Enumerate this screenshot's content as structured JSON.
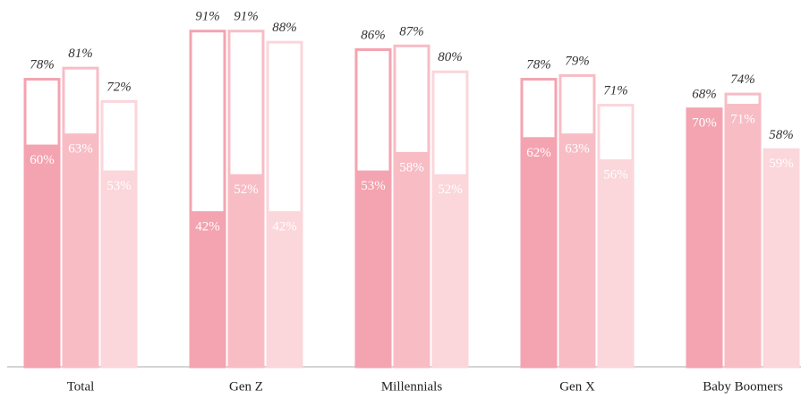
{
  "chart_data": {
    "type": "bar",
    "categories": [
      "Total",
      "Gen Z",
      "Millennials",
      "Gen X",
      "Baby Boomers"
    ],
    "ylim": [
      0,
      100
    ],
    "series": [
      {
        "color": "#f4a3b0",
        "values": [
          60,
          42,
          53,
          62,
          70
        ],
        "value_labels": [
          "60%",
          "42%",
          "53%",
          "62%",
          "70%"
        ]
      },
      {
        "color": "#f8bcc5",
        "values": [
          63,
          52,
          58,
          63,
          71
        ],
        "value_labels": [
          "63%",
          "52%",
          "58%",
          "63%",
          "71%"
        ]
      },
      {
        "color": "#fbd6db",
        "values": [
          53,
          42,
          52,
          56,
          59
        ],
        "value_labels": [
          "53%",
          "42%",
          "52%",
          "56%",
          "59%"
        ]
      }
    ],
    "outline_series": [
      {
        "color": "#f4a3b0",
        "values": [
          78,
          91,
          86,
          78,
          68
        ],
        "value_labels": [
          "78%",
          "91%",
          "86%",
          "78%",
          "68%"
        ]
      },
      {
        "color": "#f8bcc5",
        "values": [
          81,
          91,
          87,
          79,
          74
        ],
        "value_labels": [
          "81%",
          "91%",
          "87%",
          "79%",
          "74%"
        ]
      },
      {
        "color": "#fbd6db",
        "values": [
          72,
          88,
          80,
          71,
          58
        ],
        "value_labels": [
          "72%",
          "88%",
          "80%",
          "71%",
          "58%"
        ]
      }
    ]
  }
}
